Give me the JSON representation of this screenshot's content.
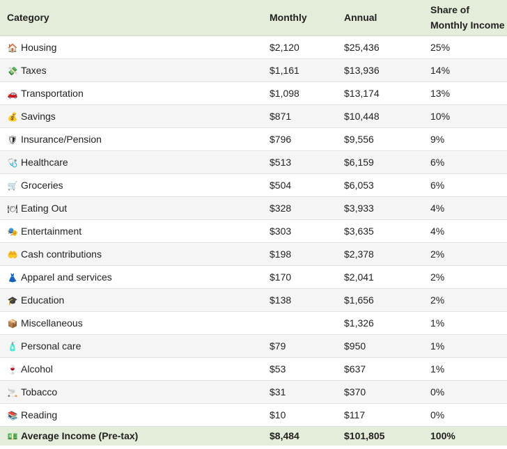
{
  "chart_data": {
    "type": "table",
    "columns": [
      "Category",
      "Monthly",
      "Annual",
      "Share of Monthly Income"
    ],
    "header": {
      "category": "Category",
      "monthly": "Monthly",
      "annual": "Annual",
      "share_line1": "Share of",
      "share_line2": "Monthly Income"
    },
    "rows": [
      {
        "icon": "🏠",
        "icon_name": "house-icon",
        "category": "Housing",
        "monthly": "$2,120",
        "annual": "$25,436",
        "share": "25%"
      },
      {
        "icon": "💸",
        "icon_name": "money-wings-icon",
        "category": "Taxes",
        "monthly": "$1,161",
        "annual": "$13,936",
        "share": "14%"
      },
      {
        "icon": "🚗",
        "icon_name": "car-icon",
        "category": "Transportation",
        "monthly": "$1,098",
        "annual": "$13,174",
        "share": "13%"
      },
      {
        "icon": "💰",
        "icon_name": "money-bag-icon",
        "category": "Savings",
        "monthly": "$871",
        "annual": "$10,448",
        "share": "10%"
      },
      {
        "icon": "🛡",
        "icon_name": "shield-icon",
        "category": "Insurance/Pension",
        "monthly": "$796",
        "annual": "$9,556",
        "share": "9%"
      },
      {
        "icon": "🩺",
        "icon_name": "stethoscope-icon",
        "category": "Healthcare",
        "monthly": "$513",
        "annual": "$6,159",
        "share": "6%"
      },
      {
        "icon": "🛒",
        "icon_name": "shopping-cart-icon",
        "category": "Groceries",
        "monthly": "$504",
        "annual": "$6,053",
        "share": "6%"
      },
      {
        "icon": "🍽",
        "icon_name": "fork-knife-icon",
        "category": "Eating Out",
        "monthly": "$328",
        "annual": "$3,933",
        "share": "4%"
      },
      {
        "icon": "🎭",
        "icon_name": "theater-masks-icon",
        "category": "Entertainment",
        "monthly": "$303",
        "annual": "$3,635",
        "share": "4%"
      },
      {
        "icon": "🤲",
        "icon_name": "open-hands-icon",
        "category": "Cash contributions",
        "monthly": "$198",
        "annual": "$2,378",
        "share": "2%"
      },
      {
        "icon": "👗",
        "icon_name": "dress-icon",
        "category": "Apparel and services",
        "monthly": "$170",
        "annual": "$2,041",
        "share": "2%"
      },
      {
        "icon": "🎓",
        "icon_name": "graduation-cap-icon",
        "category": "Education",
        "monthly": "$138",
        "annual": "$1,656",
        "share": "2%"
      },
      {
        "icon": "📦",
        "icon_name": "package-icon",
        "category": "Miscellaneous",
        "monthly": "",
        "annual": "$1,326",
        "share": "1%"
      },
      {
        "icon": "🧴",
        "icon_name": "lotion-bottle-icon",
        "category": "Personal care",
        "monthly": "$79",
        "annual": "$950",
        "share": "1%"
      },
      {
        "icon": "🍷",
        "icon_name": "wine-glass-icon",
        "category": "Alcohol",
        "monthly": "$53",
        "annual": "$637",
        "share": "1%"
      },
      {
        "icon": "🚬",
        "icon_name": "cigarette-icon",
        "category": "Tobacco",
        "monthly": "$31",
        "annual": "$370",
        "share": "0%"
      },
      {
        "icon": "📚",
        "icon_name": "books-icon",
        "category": "Reading",
        "monthly": "$10",
        "annual": "$117",
        "share": "0%"
      }
    ],
    "total": {
      "icon": "💵",
      "icon_name": "dollar-banknote-icon",
      "category": "Average Income (Pre-tax)",
      "monthly": "$8,484",
      "annual": "$101,805",
      "share": "100%"
    }
  },
  "colors": {
    "header_background": "#e3edd9",
    "footer_background": "#e3edd9",
    "stripe_background": "#f5f5f5"
  }
}
